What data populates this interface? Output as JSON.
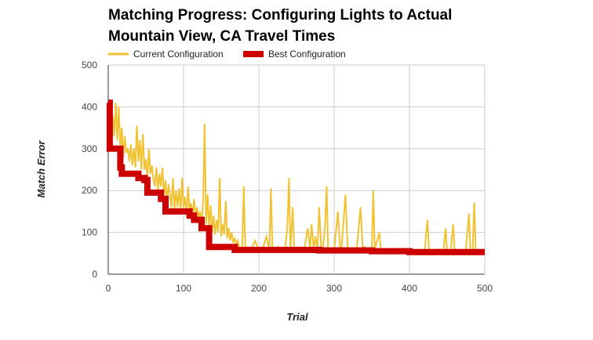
{
  "chart_data": {
    "type": "line",
    "title": "Matching Progress: Configuring Lights to Actual",
    "title_line2": "Mountain View, CA Travel Times",
    "xlabel": "Trial",
    "ylabel": "Match Error",
    "xlim": [
      0,
      500
    ],
    "ylim": [
      0,
      500
    ],
    "x_ticks": [
      "0",
      "100",
      "200",
      "300",
      "400",
      "500"
    ],
    "y_ticks": [
      "0",
      "100",
      "200",
      "300",
      "400",
      "500"
    ],
    "grid": true,
    "legend_position": "top-left",
    "series": [
      {
        "name": "Current Configuration",
        "color": "#f1c232",
        "points": [
          [
            0,
            410
          ],
          [
            2,
            330
          ],
          [
            4,
            300
          ],
          [
            6,
            380
          ],
          [
            8,
            330
          ],
          [
            10,
            410
          ],
          [
            12,
            320
          ],
          [
            14,
            400
          ],
          [
            16,
            300
          ],
          [
            18,
            350
          ],
          [
            20,
            280
          ],
          [
            22,
            330
          ],
          [
            24,
            290
          ],
          [
            26,
            300
          ],
          [
            28,
            270
          ],
          [
            30,
            310
          ],
          [
            32,
            260
          ],
          [
            34,
            300
          ],
          [
            36,
            255
          ],
          [
            38,
            355
          ],
          [
            40,
            270
          ],
          [
            42,
            320
          ],
          [
            44,
            250
          ],
          [
            46,
            335
          ],
          [
            48,
            250
          ],
          [
            50,
            275
          ],
          [
            52,
            230
          ],
          [
            54,
            300
          ],
          [
            56,
            240
          ],
          [
            58,
            260
          ],
          [
            60,
            225
          ],
          [
            62,
            210
          ],
          [
            64,
            255
          ],
          [
            66,
            200
          ],
          [
            68,
            240
          ],
          [
            70,
            210
          ],
          [
            72,
            255
          ],
          [
            74,
            185
          ],
          [
            76,
            225
          ],
          [
            78,
            170
          ],
          [
            80,
            215
          ],
          [
            82,
            190
          ],
          [
            84,
            160
          ],
          [
            86,
            230
          ],
          [
            88,
            155
          ],
          [
            90,
            200
          ],
          [
            92,
            160
          ],
          [
            94,
            205
          ],
          [
            96,
            150
          ],
          [
            98,
            230
          ],
          [
            100,
            160
          ],
          [
            102,
            185
          ],
          [
            104,
            140
          ],
          [
            106,
            210
          ],
          [
            108,
            150
          ],
          [
            110,
            170
          ],
          [
            112,
            135
          ],
          [
            114,
            180
          ],
          [
            116,
            140
          ],
          [
            118,
            160
          ],
          [
            120,
            135
          ],
          [
            122,
            150
          ],
          [
            124,
            120
          ],
          [
            126,
            175
          ],
          [
            128,
            360
          ],
          [
            130,
            120
          ],
          [
            132,
            190
          ],
          [
            134,
            110
          ],
          [
            136,
            165
          ],
          [
            138,
            100
          ],
          [
            140,
            140
          ],
          [
            142,
            95
          ],
          [
            144,
            130
          ],
          [
            146,
            100
          ],
          [
            148,
            230
          ],
          [
            150,
            90
          ],
          [
            152,
            120
          ],
          [
            154,
            95
          ],
          [
            156,
            175
          ],
          [
            158,
            85
          ],
          [
            160,
            110
          ],
          [
            162,
            80
          ],
          [
            164,
            100
          ],
          [
            166,
            75
          ],
          [
            168,
            85
          ],
          [
            170,
            70
          ],
          [
            172,
            80
          ],
          [
            174,
            65
          ],
          [
            176,
            60
          ],
          [
            178,
            62
          ],
          [
            180,
            210
          ],
          [
            182,
            58
          ],
          [
            185,
            65
          ],
          [
            190,
            60
          ],
          [
            195,
            80
          ],
          [
            200,
            58
          ],
          [
            205,
            60
          ],
          [
            210,
            90
          ],
          [
            214,
            60
          ],
          [
            216,
            205
          ],
          [
            218,
            60
          ],
          [
            225,
            65
          ],
          [
            230,
            58
          ],
          [
            235,
            60
          ],
          [
            238,
            120
          ],
          [
            240,
            230
          ],
          [
            242,
            58
          ],
          [
            245,
            160
          ],
          [
            247,
            58
          ],
          [
            250,
            60
          ],
          [
            255,
            65
          ],
          [
            260,
            58
          ],
          [
            265,
            110
          ],
          [
            268,
            60
          ],
          [
            270,
            120
          ],
          [
            273,
            58
          ],
          [
            275,
            90
          ],
          [
            278,
            60
          ],
          [
            280,
            160
          ],
          [
            283,
            58
          ],
          [
            285,
            60
          ],
          [
            288,
            120
          ],
          [
            290,
            210
          ],
          [
            292,
            58
          ],
          [
            295,
            60
          ],
          [
            300,
            58
          ],
          [
            305,
            150
          ],
          [
            308,
            58
          ],
          [
            310,
            65
          ],
          [
            315,
            190
          ],
          [
            318,
            58
          ],
          [
            320,
            60
          ],
          [
            325,
            58
          ],
          [
            330,
            60
          ],
          [
            335,
            160
          ],
          [
            338,
            58
          ],
          [
            340,
            65
          ],
          [
            345,
            58
          ],
          [
            350,
            60
          ],
          [
            352,
            200
          ],
          [
            354,
            58
          ],
          [
            360,
            100
          ],
          [
            362,
            58
          ],
          [
            365,
            60
          ],
          [
            370,
            55
          ],
          [
            375,
            58
          ],
          [
            380,
            55
          ],
          [
            385,
            60
          ],
          [
            390,
            55
          ],
          [
            395,
            58
          ],
          [
            400,
            55
          ],
          [
            405,
            58
          ],
          [
            410,
            55
          ],
          [
            415,
            58
          ],
          [
            420,
            55
          ],
          [
            424,
            130
          ],
          [
            426,
            55
          ],
          [
            430,
            58
          ],
          [
            435,
            55
          ],
          [
            440,
            60
          ],
          [
            445,
            55
          ],
          [
            448,
            110
          ],
          [
            450,
            55
          ],
          [
            455,
            58
          ],
          [
            458,
            120
          ],
          [
            460,
            55
          ],
          [
            465,
            58
          ],
          [
            470,
            55
          ],
          [
            475,
            58
          ],
          [
            479,
            145
          ],
          [
            481,
            55
          ],
          [
            484,
            58
          ],
          [
            486,
            172
          ],
          [
            488,
            55
          ],
          [
            492,
            58
          ],
          [
            496,
            55
          ],
          [
            500,
            55
          ]
        ]
      },
      {
        "name": "Best Configuration",
        "color": "#cc0000",
        "points": [
          [
            0,
            410
          ],
          [
            2,
            410
          ],
          [
            2,
            300
          ],
          [
            14,
            300
          ],
          [
            14,
            300
          ],
          [
            16,
            300
          ],
          [
            16,
            255
          ],
          [
            18,
            255
          ],
          [
            18,
            240
          ],
          [
            40,
            240
          ],
          [
            40,
            230
          ],
          [
            48,
            230
          ],
          [
            48,
            225
          ],
          [
            52,
            225
          ],
          [
            52,
            195
          ],
          [
            70,
            195
          ],
          [
            70,
            180
          ],
          [
            76,
            180
          ],
          [
            76,
            150
          ],
          [
            108,
            150
          ],
          [
            108,
            140
          ],
          [
            114,
            140
          ],
          [
            114,
            130
          ],
          [
            124,
            130
          ],
          [
            124,
            110
          ],
          [
            134,
            110
          ],
          [
            134,
            65
          ],
          [
            168,
            65
          ],
          [
            168,
            58
          ],
          [
            280,
            58
          ],
          [
            280,
            57
          ],
          [
            350,
            57
          ],
          [
            350,
            55
          ],
          [
            400,
            55
          ],
          [
            400,
            53
          ],
          [
            500,
            53
          ]
        ]
      }
    ]
  }
}
